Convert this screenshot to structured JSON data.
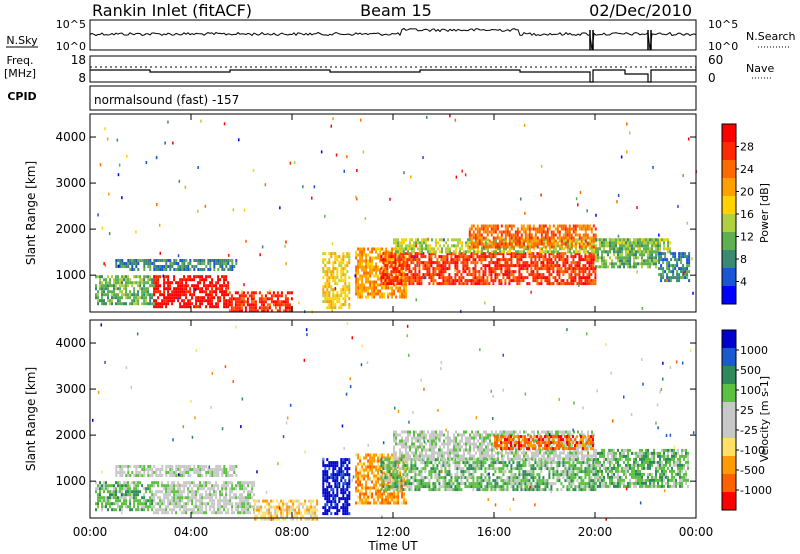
{
  "header": {
    "station": "Rankin Inlet (fitACF)",
    "beam": "Beam 15",
    "date": "02/Dec/2010"
  },
  "strip_panels": {
    "nsky": {
      "label": "N.Sky",
      "ticks": [
        "10^5",
        "10^0"
      ],
      "right_label": "N.Search",
      "right_ticks": [
        "10^5",
        "10^0"
      ]
    },
    "freq": {
      "label_line1": "Freq.",
      "label_line2": "[MHz]",
      "ticks": [
        "18",
        "8"
      ],
      "right_label": "Nave",
      "right_ticks": [
        "60",
        "0"
      ]
    },
    "cpid": {
      "label": "CPID",
      "text": "normalsound (fast) -157"
    }
  },
  "colors": {
    "power_scale": [
      "#0000ff",
      "#1a55d6",
      "#3a8a72",
      "#5fb050",
      "#b0d040",
      "#ffd200",
      "#ffa000",
      "#ff6a00",
      "#ff2a00",
      "#ff0000"
    ],
    "velocity_scale": [
      "#0000cc",
      "#1a5ad0",
      "#2f8a5a",
      "#5cc040",
      "#c8c8c8",
      "#c8c8c8",
      "#ffe066",
      "#ff9a00",
      "#ff6000",
      "#ff0000"
    ]
  },
  "chart_data": [
    {
      "type": "heatmap",
      "panel": "power",
      "ylabel": "Slant Range [km]",
      "yticks": [
        "1000",
        "2000",
        "3000",
        "4000"
      ],
      "ylim": [
        200,
        4500
      ],
      "xlim_hours": [
        0,
        24
      ],
      "colorbar": {
        "label": "Power [dB]",
        "ticks": [
          "4",
          "8",
          "12",
          "16",
          "20",
          "24",
          "28"
        ],
        "range": [
          0,
          30
        ]
      },
      "regions": [
        {
          "t": [
            0.2,
            2.5
          ],
          "r": [
            400,
            1000
          ],
          "level": 3
        },
        {
          "t": [
            1.0,
            5.8
          ],
          "r": [
            1150,
            1350
          ],
          "level": 2
        },
        {
          "t": [
            2.5,
            5.5
          ],
          "r": [
            300,
            1000
          ],
          "level": 9
        },
        {
          "t": [
            5.5,
            8.0
          ],
          "r": [
            200,
            650
          ],
          "level": 8
        },
        {
          "t": [
            9.2,
            10.3
          ],
          "r": [
            300,
            1500
          ],
          "level": 5
        },
        {
          "t": [
            10.5,
            12.5
          ],
          "r": [
            500,
            1600
          ],
          "level": 6
        },
        {
          "t": [
            11.5,
            20.0
          ],
          "r": [
            800,
            1500
          ],
          "level": 8
        },
        {
          "t": [
            12.0,
            23.0
          ],
          "r": [
            1500,
            1800
          ],
          "level": 4
        },
        {
          "t": [
            15.0,
            20.0
          ],
          "r": [
            1600,
            2100
          ],
          "level": 7
        },
        {
          "t": [
            20.0,
            22.5
          ],
          "r": [
            1200,
            1800
          ],
          "level": 3
        },
        {
          "t": [
            22.5,
            23.7
          ],
          "r": [
            900,
            1500
          ],
          "level": 2
        }
      ]
    },
    {
      "type": "heatmap",
      "panel": "velocity",
      "ylabel": "Slant Range [km]",
      "yticks": [
        "1000",
        "2000",
        "3000",
        "4000"
      ],
      "ylim": [
        200,
        4500
      ],
      "xlabel": "Time UT",
      "xticks": [
        "00:00",
        "04:00",
        "08:00",
        "12:00",
        "16:00",
        "20:00",
        "00:00"
      ],
      "xlim_hours": [
        0,
        24
      ],
      "colorbar": {
        "label": "Velocity [m s-1]",
        "ticks": [
          "1000",
          "500",
          "100",
          "25",
          "-25",
          "-100",
          "-500",
          "-1000"
        ],
        "range": [
          -1000,
          1000
        ]
      },
      "regions": [
        {
          "t": [
            0.2,
            2.5
          ],
          "r": [
            400,
            1000
          ],
          "level": 3
        },
        {
          "t": [
            1.0,
            5.8
          ],
          "r": [
            1150,
            1350
          ],
          "level": 4
        },
        {
          "t": [
            2.5,
            6.5
          ],
          "r": [
            300,
            1000
          ],
          "level": 4
        },
        {
          "t": [
            6.5,
            9.0
          ],
          "r": [
            200,
            600
          ],
          "level": 6
        },
        {
          "t": [
            9.2,
            10.3
          ],
          "r": [
            300,
            1500
          ],
          "level": 0
        },
        {
          "t": [
            10.5,
            12.5
          ],
          "r": [
            500,
            1600
          ],
          "level": 7
        },
        {
          "t": [
            11.5,
            20.0
          ],
          "r": [
            800,
            1500
          ],
          "level": 3
        },
        {
          "t": [
            12.0,
            20.0
          ],
          "r": [
            1500,
            2100
          ],
          "level": 4
        },
        {
          "t": [
            16.0,
            20.0
          ],
          "r": [
            1700,
            2000
          ],
          "level": 8
        },
        {
          "t": [
            20.0,
            23.7
          ],
          "r": [
            900,
            1700
          ],
          "level": 3
        }
      ]
    }
  ]
}
